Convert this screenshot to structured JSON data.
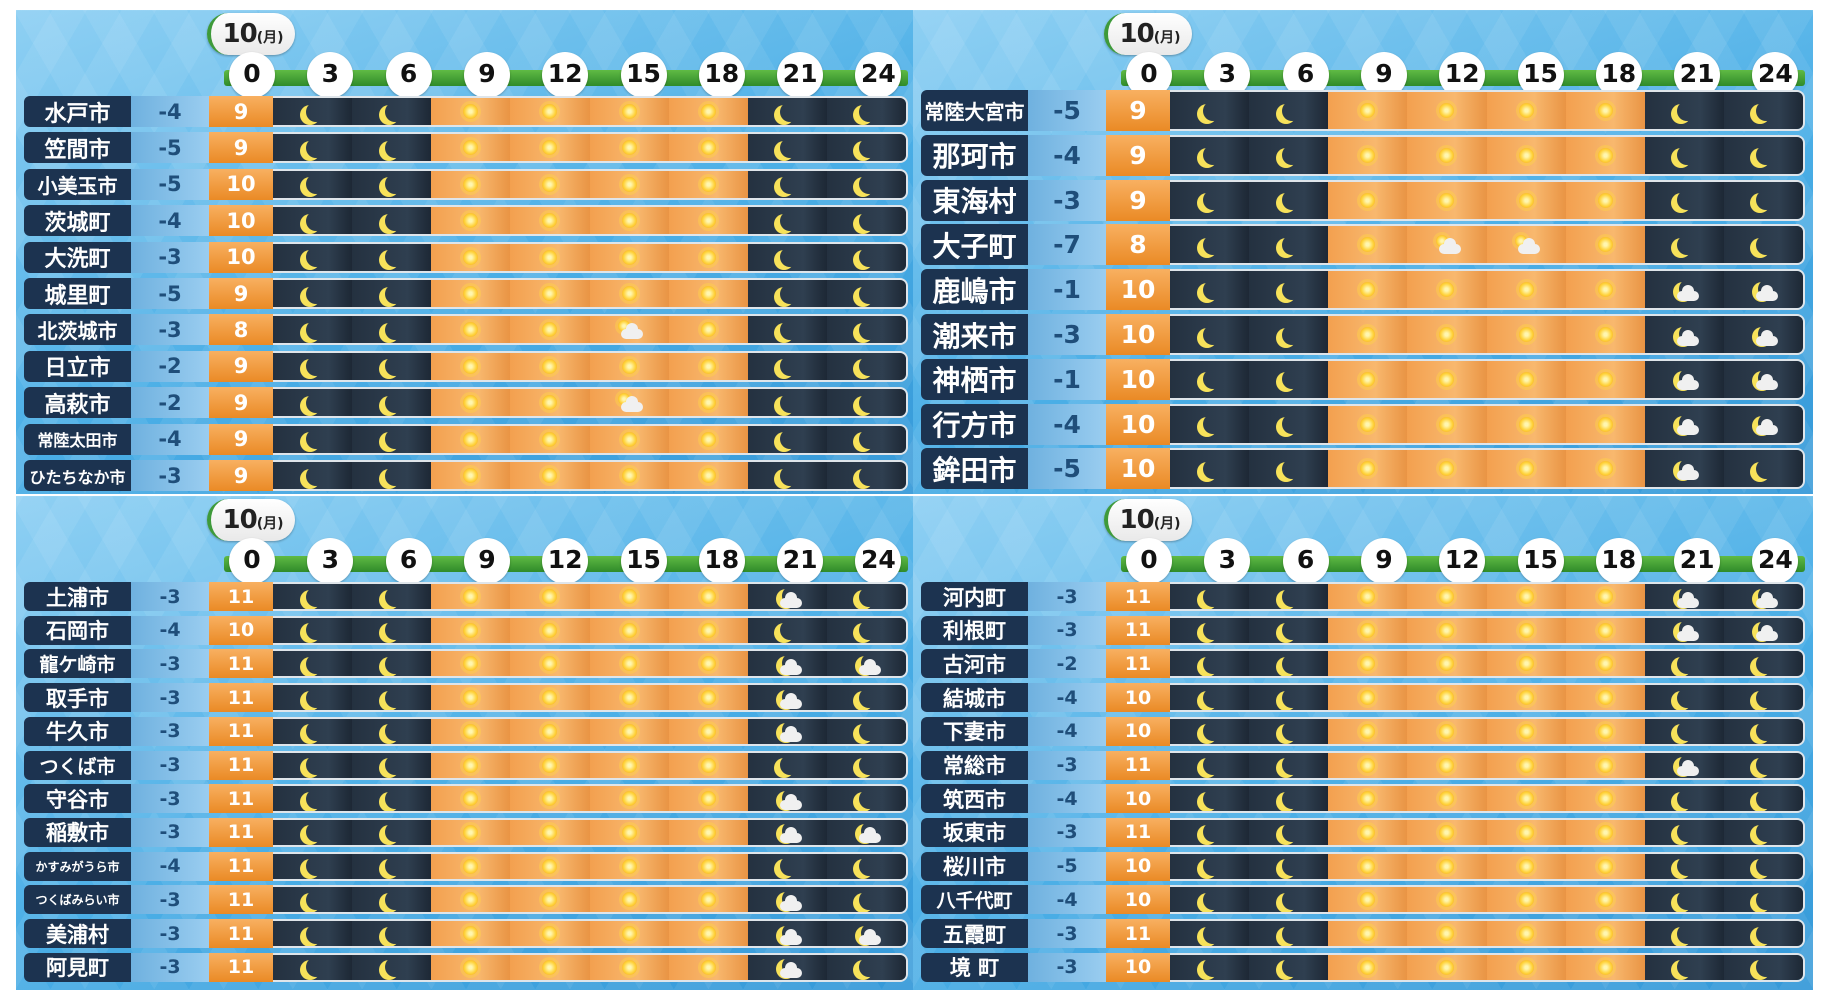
{
  "ticks": [
    "0",
    "3",
    "6",
    "9",
    "12",
    "15",
    "18",
    "21",
    "24"
  ],
  "panels": [
    {
      "date_day": "10",
      "date_weekday": "(月)",
      "rows": [
        {
          "name": "水戸市",
          "min": "-4",
          "max": "9",
          "w": [
            "moon",
            "moon",
            "sun",
            "sun",
            "sun",
            "sun",
            "moon",
            "moon"
          ]
        },
        {
          "name": "笠間市",
          "min": "-5",
          "max": "9",
          "w": [
            "moon",
            "moon",
            "sun",
            "sun",
            "sun",
            "sun",
            "moon",
            "moon"
          ]
        },
        {
          "name": "小美玉市",
          "min": "-5",
          "max": "10",
          "w": [
            "moon",
            "moon",
            "sun",
            "sun",
            "sun",
            "sun",
            "moon",
            "moon"
          ]
        },
        {
          "name": "茨城町",
          "min": "-4",
          "max": "10",
          "w": [
            "moon",
            "moon",
            "sun",
            "sun",
            "sun",
            "sun",
            "moon",
            "moon"
          ]
        },
        {
          "name": "大洗町",
          "min": "-3",
          "max": "10",
          "w": [
            "moon",
            "moon",
            "sun",
            "sun",
            "sun",
            "sun",
            "moon",
            "moon"
          ]
        },
        {
          "name": "城里町",
          "min": "-5",
          "max": "9",
          "w": [
            "moon",
            "moon",
            "sun",
            "sun",
            "sun",
            "sun",
            "moon",
            "moon"
          ]
        },
        {
          "name": "北茨城市",
          "min": "-3",
          "max": "8",
          "w": [
            "moon",
            "moon",
            "sun",
            "sun",
            "sun-cloud",
            "sun",
            "moon",
            "moon"
          ]
        },
        {
          "name": "日立市",
          "min": "-2",
          "max": "9",
          "w": [
            "moon",
            "moon",
            "sun",
            "sun",
            "sun",
            "sun",
            "moon",
            "moon"
          ]
        },
        {
          "name": "高萩市",
          "min": "-2",
          "max": "9",
          "w": [
            "moon",
            "moon",
            "sun",
            "sun",
            "sun-cloud",
            "sun",
            "moon",
            "moon"
          ]
        },
        {
          "name": "常陸太田市",
          "min": "-4",
          "max": "9",
          "w": [
            "moon",
            "moon",
            "sun",
            "sun",
            "sun",
            "sun",
            "moon",
            "moon"
          ]
        },
        {
          "name": "ひたちなか市",
          "min": "-3",
          "max": "9",
          "w": [
            "moon",
            "moon",
            "sun",
            "sun",
            "sun",
            "sun",
            "moon",
            "moon"
          ]
        }
      ]
    },
    {
      "date_day": "10",
      "date_weekday": "(月)",
      "rows": [
        {
          "name": "常陸大宮市",
          "min": "-5",
          "max": "9",
          "w": [
            "moon",
            "moon",
            "sun",
            "sun",
            "sun",
            "sun",
            "moon",
            "moon"
          ]
        },
        {
          "name": "那珂市",
          "min": "-4",
          "max": "9",
          "w": [
            "moon",
            "moon",
            "sun",
            "sun",
            "sun",
            "sun",
            "moon",
            "moon"
          ]
        },
        {
          "name": "東海村",
          "min": "-3",
          "max": "9",
          "w": [
            "moon",
            "moon",
            "sun",
            "sun",
            "sun",
            "sun",
            "moon",
            "moon"
          ]
        },
        {
          "name": "大子町",
          "min": "-7",
          "max": "8",
          "w": [
            "moon",
            "moon",
            "sun",
            "sun-cloud",
            "sun-cloud",
            "sun",
            "moon",
            "moon"
          ]
        },
        {
          "name": "鹿嶋市",
          "min": "-1",
          "max": "10",
          "w": [
            "moon",
            "moon",
            "sun",
            "sun",
            "sun",
            "sun",
            "moon-cloud",
            "moon-cloud"
          ]
        },
        {
          "name": "潮来市",
          "min": "-3",
          "max": "10",
          "w": [
            "moon",
            "moon",
            "sun",
            "sun",
            "sun",
            "sun",
            "moon-cloud",
            "moon-cloud"
          ]
        },
        {
          "name": "神栖市",
          "min": "-1",
          "max": "10",
          "w": [
            "moon",
            "moon",
            "sun",
            "sun",
            "sun",
            "sun",
            "moon-cloud",
            "moon-cloud"
          ]
        },
        {
          "name": "行方市",
          "min": "-4",
          "max": "10",
          "w": [
            "moon",
            "moon",
            "sun",
            "sun",
            "sun",
            "sun",
            "moon-cloud",
            "moon-cloud"
          ]
        },
        {
          "name": "鉾田市",
          "min": "-5",
          "max": "10",
          "w": [
            "moon",
            "moon",
            "sun",
            "sun",
            "sun",
            "sun",
            "moon-cloud",
            "moon"
          ]
        }
      ]
    },
    {
      "date_day": "10",
      "date_weekday": "(月)",
      "rows": [
        {
          "name": "土浦市",
          "min": "-3",
          "max": "11",
          "w": [
            "moon",
            "moon",
            "sun",
            "sun",
            "sun",
            "sun",
            "moon-cloud",
            "moon"
          ]
        },
        {
          "name": "石岡市",
          "min": "-4",
          "max": "10",
          "w": [
            "moon",
            "moon",
            "sun",
            "sun",
            "sun",
            "sun",
            "moon",
            "moon"
          ]
        },
        {
          "name": "龍ケ崎市",
          "min": "-3",
          "max": "11",
          "w": [
            "moon",
            "moon",
            "sun",
            "sun",
            "sun",
            "sun",
            "moon-cloud",
            "moon-cloud"
          ]
        },
        {
          "name": "取手市",
          "min": "-3",
          "max": "11",
          "w": [
            "moon",
            "moon",
            "sun",
            "sun",
            "sun",
            "sun",
            "moon-cloud",
            "moon"
          ]
        },
        {
          "name": "牛久市",
          "min": "-3",
          "max": "11",
          "w": [
            "moon",
            "moon",
            "sun",
            "sun",
            "sun",
            "sun",
            "moon-cloud",
            "moon"
          ]
        },
        {
          "name": "つくば市",
          "min": "-3",
          "max": "11",
          "w": [
            "moon",
            "moon",
            "sun",
            "sun",
            "sun",
            "sun",
            "moon",
            "moon"
          ]
        },
        {
          "name": "守谷市",
          "min": "-3",
          "max": "11",
          "w": [
            "moon",
            "moon",
            "sun",
            "sun",
            "sun",
            "sun",
            "moon-cloud",
            "moon"
          ]
        },
        {
          "name": "稲敷市",
          "min": "-3",
          "max": "11",
          "w": [
            "moon",
            "moon",
            "sun",
            "sun",
            "sun",
            "sun",
            "moon-cloud",
            "moon-cloud"
          ]
        },
        {
          "name": "かすみがうら市",
          "min": "-4",
          "max": "11",
          "w": [
            "moon",
            "moon",
            "sun",
            "sun",
            "sun",
            "sun",
            "moon",
            "moon"
          ]
        },
        {
          "name": "つくばみらい市",
          "min": "-3",
          "max": "11",
          "w": [
            "moon",
            "moon",
            "sun",
            "sun",
            "sun",
            "sun",
            "moon-cloud",
            "moon"
          ]
        },
        {
          "name": "美浦村",
          "min": "-3",
          "max": "11",
          "w": [
            "moon",
            "moon",
            "sun",
            "sun",
            "sun",
            "sun",
            "moon-cloud",
            "moon-cloud"
          ]
        },
        {
          "name": "阿見町",
          "min": "-3",
          "max": "11",
          "w": [
            "moon",
            "moon",
            "sun",
            "sun",
            "sun",
            "sun",
            "moon-cloud",
            "moon"
          ]
        }
      ]
    },
    {
      "date_day": "10",
      "date_weekday": "(月)",
      "rows": [
        {
          "name": "河内町",
          "min": "-3",
          "max": "11",
          "w": [
            "moon",
            "moon",
            "sun",
            "sun",
            "sun",
            "sun",
            "moon-cloud",
            "moon-cloud"
          ]
        },
        {
          "name": "利根町",
          "min": "-3",
          "max": "11",
          "w": [
            "moon",
            "moon",
            "sun",
            "sun",
            "sun",
            "sun",
            "moon-cloud",
            "moon-cloud"
          ]
        },
        {
          "name": "古河市",
          "min": "-2",
          "max": "11",
          "w": [
            "moon",
            "moon",
            "sun",
            "sun",
            "sun",
            "sun",
            "moon",
            "moon"
          ]
        },
        {
          "name": "結城市",
          "min": "-4",
          "max": "10",
          "w": [
            "moon",
            "moon",
            "sun",
            "sun",
            "sun",
            "sun",
            "moon",
            "moon"
          ]
        },
        {
          "name": "下妻市",
          "min": "-4",
          "max": "10",
          "w": [
            "moon",
            "moon",
            "sun",
            "sun",
            "sun",
            "sun",
            "moon",
            "moon"
          ]
        },
        {
          "name": "常総市",
          "min": "-3",
          "max": "11",
          "w": [
            "moon",
            "moon",
            "sun",
            "sun",
            "sun",
            "sun",
            "moon-cloud",
            "moon"
          ]
        },
        {
          "name": "筑西市",
          "min": "-4",
          "max": "10",
          "w": [
            "moon",
            "moon",
            "sun",
            "sun",
            "sun",
            "sun",
            "moon",
            "moon"
          ]
        },
        {
          "name": "坂東市",
          "min": "-3",
          "max": "11",
          "w": [
            "moon",
            "moon",
            "sun",
            "sun",
            "sun",
            "sun",
            "moon",
            "moon"
          ]
        },
        {
          "name": "桜川市",
          "min": "-5",
          "max": "10",
          "w": [
            "moon",
            "moon",
            "sun",
            "sun",
            "sun",
            "sun",
            "moon",
            "moon"
          ]
        },
        {
          "name": "八千代町",
          "min": "-4",
          "max": "10",
          "w": [
            "moon",
            "moon",
            "sun",
            "sun",
            "sun",
            "sun",
            "moon",
            "moon"
          ]
        },
        {
          "name": "五霞町",
          "min": "-3",
          "max": "11",
          "w": [
            "moon",
            "moon",
            "sun",
            "sun",
            "sun",
            "sun",
            "moon",
            "moon"
          ]
        },
        {
          "name": "境 町",
          "min": "-3",
          "max": "10",
          "w": [
            "moon",
            "moon",
            "sun",
            "sun",
            "sun",
            "sun",
            "moon",
            "moon"
          ]
        }
      ]
    }
  ]
}
